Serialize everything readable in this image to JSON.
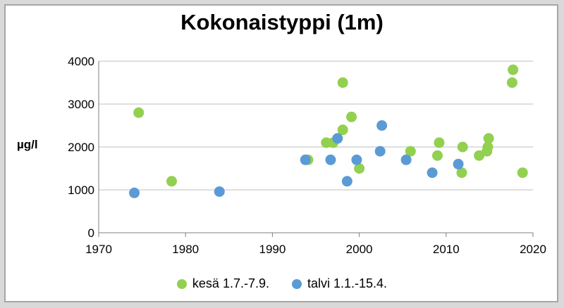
{
  "chart_data": {
    "type": "scatter",
    "title": "Kokonaistyppi (1m)",
    "xlabel": "",
    "ylabel": "µg/l",
    "xlim": [
      1970,
      2020
    ],
    "ylim": [
      0,
      4000
    ],
    "xticks": [
      1970,
      1980,
      1990,
      2000,
      2010,
      2020
    ],
    "yticks": [
      0,
      1000,
      2000,
      3000,
      4000
    ],
    "grid": "horizontal",
    "legend_position": "bottom",
    "series": [
      {
        "name": "kesä 1.7.-7.9.",
        "color": "#92d050",
        "x": [
          1974.6,
          1978.4,
          1994.1,
          1996.2,
          1997.0,
          1998.1,
          1998.1,
          1999.1,
          2000.0,
          2005.9,
          2009.0,
          2009.2,
          2011.8,
          2011.9,
          2013.8,
          2014.7,
          2014.8,
          2014.9,
          2017.6,
          2017.7,
          2018.8
        ],
        "y": [
          2800,
          1200,
          1700,
          2100,
          2100,
          3500,
          2400,
          2700,
          1500,
          1900,
          1800,
          2100,
          1400,
          2000,
          1800,
          1900,
          2000,
          2200,
          3500,
          3800,
          1400
        ]
      },
      {
        "name": "talvi 1.1.-15.4.",
        "color": "#5b9bd5",
        "x": [
          1974.1,
          1983.9,
          1993.8,
          1996.7,
          1997.5,
          1998.6,
          1999.7,
          2002.4,
          2002.6,
          2005.4,
          2008.4,
          2011.4
        ],
        "y": [
          930,
          960,
          1700,
          1700,
          2200,
          1200,
          1700,
          1900,
          2500,
          1700,
          1400,
          1600
        ]
      }
    ]
  }
}
